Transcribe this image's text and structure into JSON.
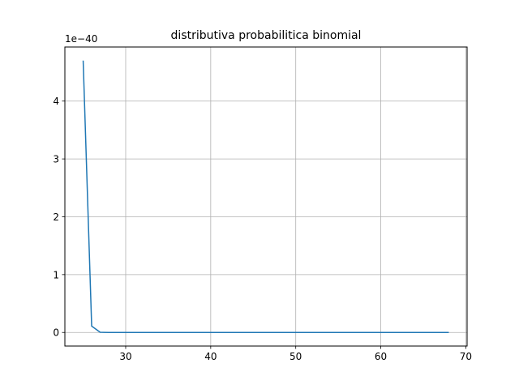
{
  "chart_data": {
    "type": "line",
    "title": "distributiva probabilitica binomial",
    "xlabel": "",
    "ylabel": "",
    "y_offset_label": "1e−40",
    "xlim": [
      22.85,
      70.15
    ],
    "ylim": [
      -0.235,
      4.935
    ],
    "x_ticks": [
      30,
      40,
      50,
      60,
      70
    ],
    "x_tick_labels": [
      "30",
      "40",
      "50",
      "60",
      "70"
    ],
    "y_ticks": [
      0,
      1,
      2,
      3,
      4
    ],
    "y_tick_labels": [
      "0",
      "1",
      "2",
      "3",
      "4"
    ],
    "grid": true,
    "series": [
      {
        "color": "#1f77b4",
        "x": [
          25,
          26,
          27,
          28,
          29,
          30,
          31,
          32,
          33,
          34,
          35,
          36,
          37,
          38,
          39,
          40,
          41,
          42,
          43,
          44,
          45,
          46,
          47,
          48,
          49,
          50,
          51,
          52,
          53,
          54,
          55,
          56,
          57,
          58,
          59,
          60,
          61,
          62,
          63,
          64,
          65,
          66,
          67,
          68
        ],
        "values": [
          4.7,
          0.11,
          0.003,
          0.0001,
          0,
          0,
          0,
          0,
          0,
          0,
          0,
          0,
          0,
          0,
          0,
          0,
          0,
          0,
          0,
          0,
          0,
          0,
          0,
          0,
          0,
          0,
          0,
          0,
          0,
          0,
          0,
          0,
          0,
          0,
          0,
          0,
          0,
          0,
          0,
          0,
          0,
          0,
          0,
          0
        ]
      }
    ]
  }
}
